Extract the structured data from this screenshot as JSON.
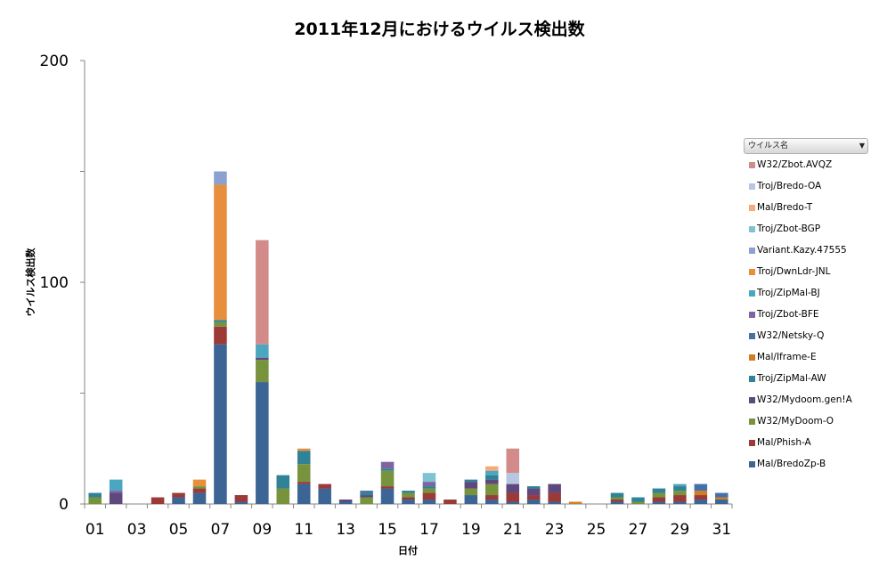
{
  "chart_data": {
    "type": "bar",
    "stacked": true,
    "title": "2011年12月におけるウイルス検出数",
    "xlabel": "日付",
    "ylabel": "ウイルス検出数",
    "ylim": [
      0,
      200
    ],
    "yticks": [
      0,
      100,
      200
    ],
    "grid": false,
    "legend_position": "right",
    "legend_title": "ウイルス名",
    "categories": [
      "01",
      "02",
      "03",
      "04",
      "05",
      "06",
      "07",
      "08",
      "09",
      "10",
      "11",
      "12",
      "13",
      "14",
      "15",
      "16",
      "17",
      "18",
      "19",
      "20",
      "21",
      "22",
      "23",
      "24",
      "25",
      "26",
      "27",
      "28",
      "29",
      "30",
      "31"
    ],
    "x_tick_labels": [
      "01",
      "03",
      "05",
      "07",
      "09",
      "11",
      "13",
      "15",
      "17",
      "19",
      "21",
      "23",
      "25",
      "27",
      "29",
      "31"
    ],
    "series": [
      {
        "name": "Mal/BredoZp-B",
        "color": "#3c6596",
        "values": [
          0,
          0,
          0,
          0,
          3,
          5,
          72,
          1,
          55,
          0,
          9,
          7,
          1,
          0,
          7,
          2,
          2,
          0,
          4,
          2,
          1,
          2,
          1,
          0,
          0,
          1,
          0,
          1,
          1,
          2,
          2
        ]
      },
      {
        "name": "Mal/Phish-A",
        "color": "#9b3a36",
        "values": [
          0,
          0,
          0,
          3,
          2,
          2,
          8,
          3,
          0,
          0,
          1,
          2,
          0,
          0,
          1,
          1,
          3,
          2,
          0,
          2,
          4,
          2,
          4,
          0,
          0,
          1,
          0,
          2,
          3,
          2,
          0
        ]
      },
      {
        "name": "W32/MyDoom-O",
        "color": "#77943d",
        "values": [
          3,
          0,
          0,
          0,
          0,
          1,
          2,
          0,
          10,
          7,
          8,
          0,
          0,
          3,
          7,
          2,
          2,
          0,
          3,
          5,
          0,
          0,
          0,
          0,
          0,
          1,
          1,
          2,
          2,
          0,
          0
        ]
      },
      {
        "name": "W32/Mydoom.gen!A",
        "color": "#5f487c",
        "values": [
          0,
          5,
          0,
          0,
          0,
          0,
          0,
          0,
          1,
          0,
          0,
          0,
          1,
          1,
          0,
          0,
          0,
          0,
          3,
          2,
          4,
          3,
          4,
          0,
          0,
          0,
          0,
          0,
          0,
          0,
          0
        ]
      },
      {
        "name": "Troj/ZipMal-AW",
        "color": "#2f8297",
        "values": [
          2,
          0,
          0,
          0,
          0,
          0,
          1,
          0,
          0,
          6,
          6,
          0,
          0,
          1,
          1,
          1,
          1,
          0,
          1,
          2,
          0,
          1,
          0,
          0,
          0,
          2,
          2,
          2,
          2,
          0,
          0
        ]
      },
      {
        "name": "Mal/Iframe-E",
        "color": "#d07d27",
        "values": [
          0,
          0,
          0,
          0,
          0,
          0,
          0,
          0,
          0,
          0,
          0,
          0,
          0,
          0,
          0,
          0,
          0,
          0,
          0,
          0,
          0,
          0,
          0,
          1,
          0,
          0,
          0,
          0,
          0,
          2,
          1
        ]
      },
      {
        "name": "W32/Netsky-Q",
        "color": "#4472a8",
        "values": [
          0,
          0,
          0,
          0,
          0,
          0,
          0,
          0,
          0,
          0,
          0,
          0,
          0,
          1,
          0,
          0,
          0,
          0,
          0,
          0,
          0,
          0,
          0,
          0,
          0,
          0,
          0,
          0,
          0,
          3,
          2
        ]
      },
      {
        "name": "Troj/Zbot-BFE",
        "color": "#7f64a1",
        "values": [
          0,
          1,
          0,
          0,
          0,
          0,
          0,
          0,
          0,
          0,
          0,
          0,
          0,
          0,
          3,
          0,
          2,
          0,
          0,
          0,
          0,
          0,
          0,
          0,
          0,
          0,
          0,
          0,
          0,
          0,
          0
        ]
      },
      {
        "name": "Troj/ZipMal-BJ",
        "color": "#4ba6bf",
        "values": [
          0,
          5,
          0,
          0,
          0,
          0,
          0,
          0,
          6,
          0,
          0,
          0,
          0,
          0,
          0,
          0,
          0,
          0,
          0,
          2,
          0,
          0,
          0,
          0,
          0,
          0,
          0,
          0,
          1,
          0,
          0
        ]
      },
      {
        "name": "Troj/DwnLdr-JNL",
        "color": "#e88f3d",
        "values": [
          0,
          0,
          0,
          0,
          0,
          3,
          61,
          0,
          0,
          0,
          1,
          0,
          0,
          0,
          0,
          0,
          0,
          0,
          0,
          0,
          0,
          0,
          0,
          0,
          0,
          0,
          0,
          0,
          0,
          0,
          0
        ]
      },
      {
        "name": "Variant.Kazy.47555",
        "color": "#8ca1d0",
        "values": [
          0,
          0,
          0,
          0,
          0,
          0,
          6,
          0,
          0,
          0,
          0,
          0,
          0,
          0,
          0,
          0,
          0,
          0,
          0,
          0,
          0,
          0,
          0,
          0,
          0,
          0,
          0,
          0,
          0,
          0,
          0
        ]
      },
      {
        "name": "Troj/Zbot-BGP",
        "color": "#7fc3d3",
        "values": [
          0,
          0,
          0,
          0,
          0,
          0,
          0,
          0,
          0,
          0,
          0,
          0,
          0,
          0,
          0,
          0,
          4,
          0,
          0,
          0,
          0,
          0,
          0,
          0,
          0,
          0,
          0,
          0,
          0,
          0,
          0
        ]
      },
      {
        "name": "Mal/Bredo-T",
        "color": "#f5aa78",
        "values": [
          0,
          0,
          0,
          0,
          0,
          0,
          0,
          0,
          0,
          0,
          0,
          0,
          0,
          0,
          0,
          0,
          0,
          0,
          0,
          2,
          0,
          0,
          0,
          0,
          0,
          0,
          0,
          0,
          0,
          0,
          0
        ]
      },
      {
        "name": "Troj/Bredo-OA",
        "color": "#b8c6e1",
        "values": [
          0,
          0,
          0,
          0,
          0,
          0,
          0,
          0,
          0,
          0,
          0,
          0,
          0,
          0,
          0,
          0,
          0,
          0,
          0,
          0,
          5,
          0,
          0,
          0,
          0,
          0,
          0,
          0,
          0,
          0,
          0
        ]
      },
      {
        "name": "W32/Zbot.AVQZ",
        "color": "#d38b8a",
        "values": [
          0,
          0,
          0,
          0,
          0,
          0,
          0,
          0,
          47,
          0,
          0,
          0,
          0,
          0,
          0,
          0,
          0,
          0,
          0,
          0,
          11,
          0,
          0,
          0,
          0,
          0,
          0,
          0,
          0,
          0,
          0
        ]
      }
    ]
  }
}
